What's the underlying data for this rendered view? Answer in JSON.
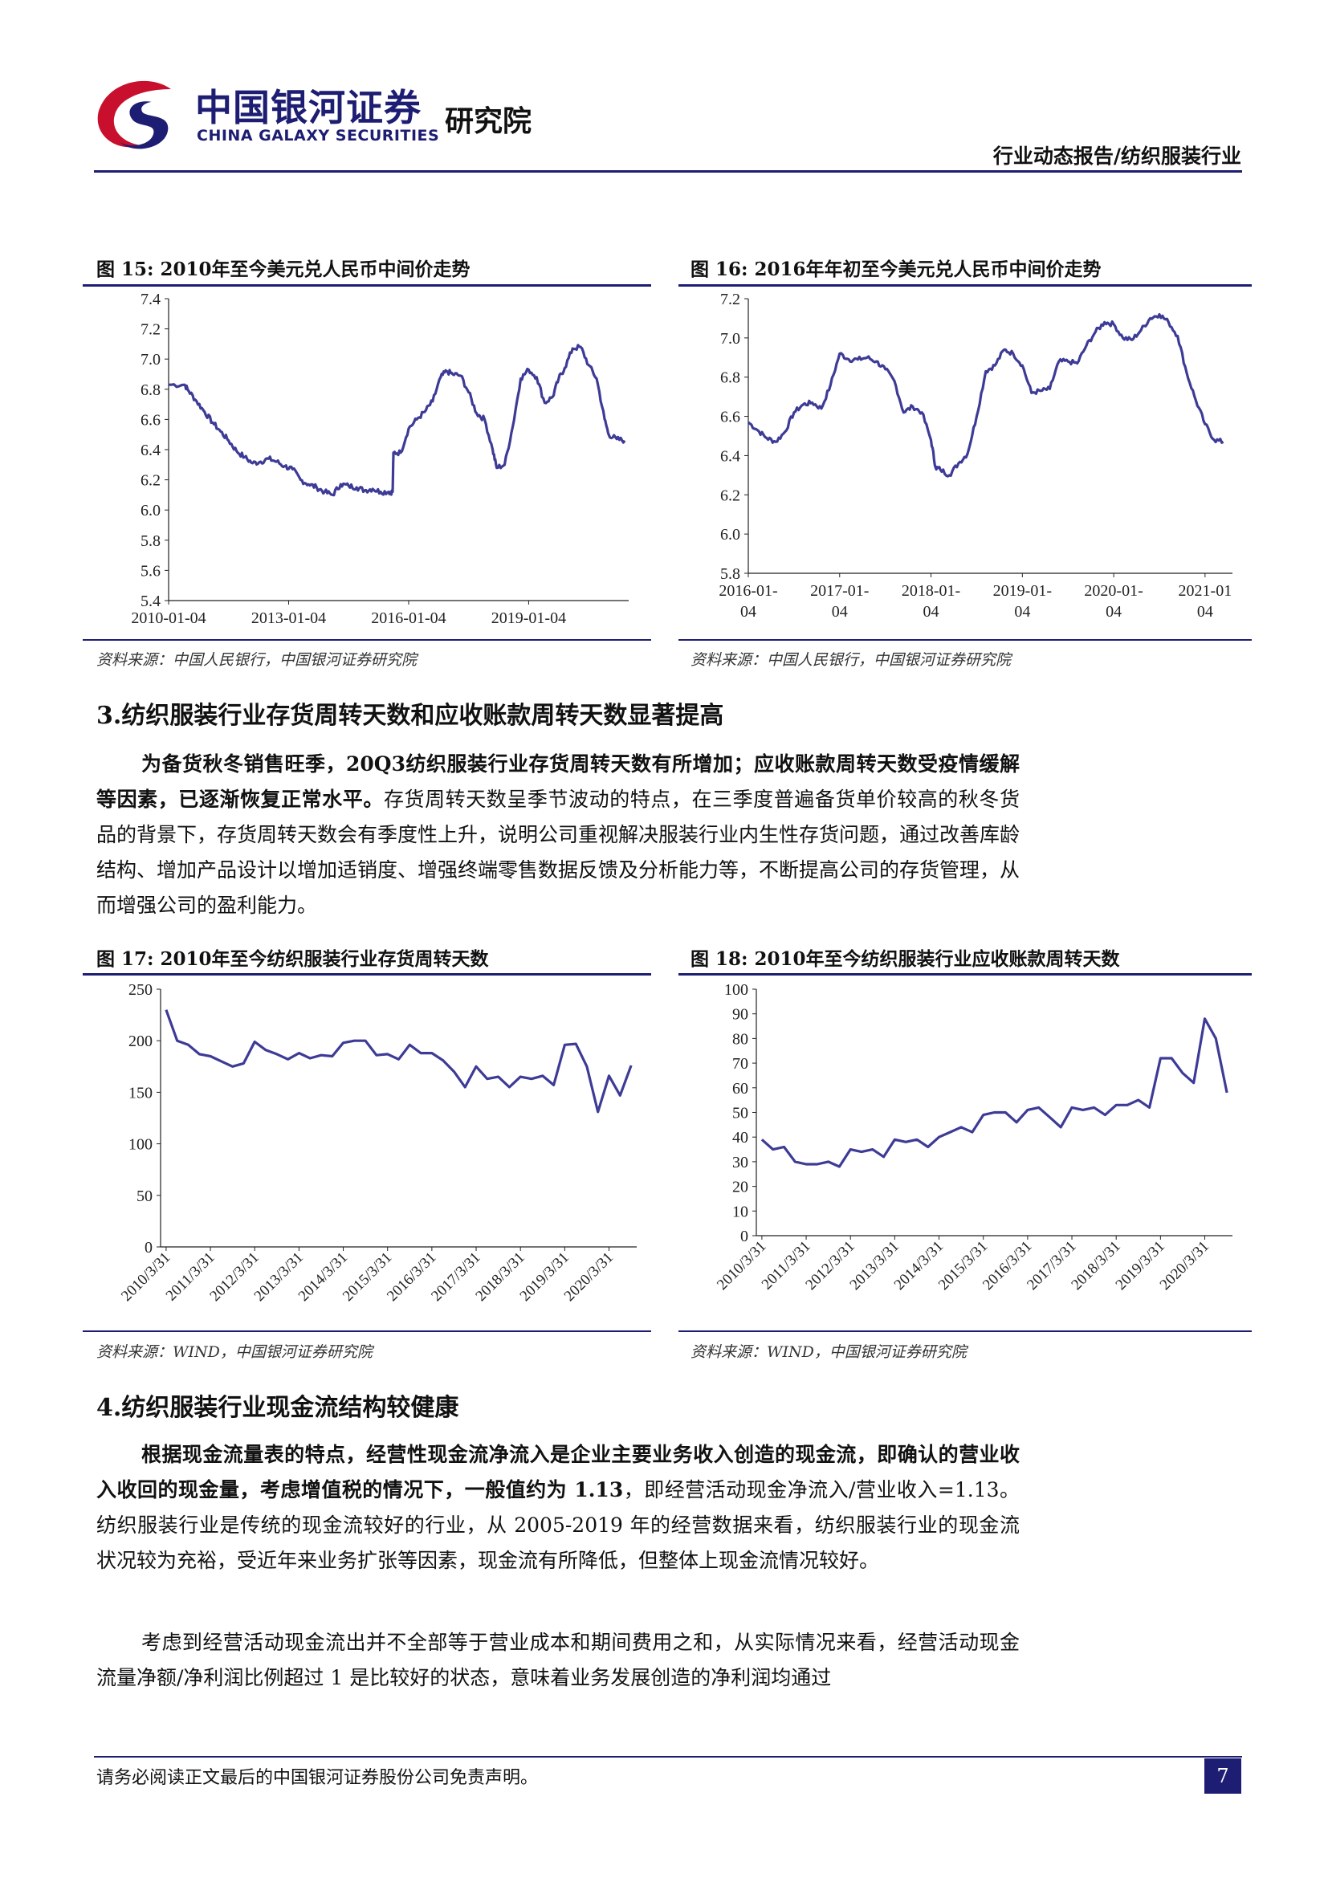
{
  "header": {
    "brand_cn": "中国银河证券",
    "brand_en": "CHINA GALAXY SECURITIES",
    "institute": "研究院",
    "report_type": "行业动态报告/纺织服装行业"
  },
  "colors": {
    "navy": "#1d1d73",
    "line": "#3d3b96",
    "logo_red": "#c8102e"
  },
  "fig15": {
    "title": "图 15: 2010年至今美元兑人民币中间价走势",
    "source": "资料来源：中国人民银行，中国银河证券研究院"
  },
  "fig16": {
    "title": "图 16: 2016年年初至今美元兑人民币中间价走势",
    "source": "资料来源：中国人民银行，中国银河证券研究院"
  },
  "fig17": {
    "title": "图 17: 2010年至今纺织服装行业存货周转天数",
    "source": "资料来源：WIND，中国银河证券研究院"
  },
  "fig18": {
    "title": "图 18: 2010年至今纺织服装行业应收账款周转天数",
    "source": "资料来源：WIND，中国银河证券研究院"
  },
  "section3": {
    "heading": "3.纺织服装行业存货周转天数和应收账款周转天数显著提高",
    "para_bold": "为备货秋冬销售旺季，20Q3纺织服装行业存货周转天数有所增加；应收账款周转天数受疫情缓解等因素，已逐渐恢复正常水平。",
    "para_rest": "存货周转天数呈季节波动的特点，在三季度普遍备货单价较高的秋冬货品的背景下，存货周转天数会有季度性上升，说明公司重视解决服装行业内生性存货问题，通过改善库龄结构、增加产品设计以增加适销度、增强终端零售数据反馈及分析能力等，不断提高公司的存货管理，从而增强公司的盈利能力。"
  },
  "section4": {
    "heading": "4.纺织服装行业现金流结构较健康",
    "para1_bold": "根据现金流量表的特点，经营性现金流净流入是企业主要业务收入创造的现金流，即确认的营业收入收回的现金量，考虑增值税的情况下，一般值约为 1.13",
    "para1_rest": "，即经营活动现金净流入/营业收入=1.13。纺织服装行业是传统的现金流较好的行业，从 2005-2019 年的经营数据来看，纺织服装行业的现金流状况较为充裕，受近年来业务扩张等因素，现金流有所降低，但整体上现金流情况较好。",
    "para2": "考虑到经营活动现金流出并不全部等于营业成本和期间费用之和，从实际情况来看，经营活动现金流量净额/净利润比例超过 1 是比较好的状态，意味着业务发展创造的净利润均通过"
  },
  "footer": {
    "disclaimer": "请务必阅读正文最后的中国银河证券股份公司免责声明。",
    "page_number": "7"
  },
  "chart_data": [
    {
      "id": "fig15",
      "type": "line",
      "title": "2010年至今美元兑人民币中间价走势",
      "x_tick_labels": [
        "2010-01-04",
        "2013-01-04",
        "2016-01-04",
        "2019-01-04"
      ],
      "x_range": [
        2010.0,
        2021.5
      ],
      "ylim": [
        5.4,
        7.4
      ],
      "y_ticks": [
        5.4,
        5.6,
        5.8,
        6.0,
        6.2,
        6.4,
        6.6,
        6.8,
        7.0,
        7.2,
        7.4
      ],
      "x": [
        2010.0,
        2010.4,
        2010.5,
        2010.7,
        2010.9,
        2011.1,
        2011.3,
        2011.5,
        2011.7,
        2011.9,
        2012.1,
        2012.3,
        2012.5,
        2012.7,
        2012.9,
        2013.1,
        2013.3,
        2013.5,
        2013.7,
        2013.9,
        2014.1,
        2014.3,
        2014.5,
        2014.7,
        2014.9,
        2015.1,
        2015.3,
        2015.5,
        2015.6,
        2015.62,
        2015.8,
        2016.0,
        2016.2,
        2016.4,
        2016.6,
        2016.8,
        2016.95,
        2017.1,
        2017.3,
        2017.5,
        2017.7,
        2017.9,
        2018.1,
        2018.2,
        2018.4,
        2018.6,
        2018.8,
        2019.0,
        2019.2,
        2019.4,
        2019.6,
        2019.75,
        2019.9,
        2020.1,
        2020.3,
        2020.5,
        2020.7,
        2020.9,
        2021.0,
        2021.2,
        2021.4
      ],
      "y": [
        6.83,
        6.83,
        6.79,
        6.72,
        6.65,
        6.58,
        6.52,
        6.46,
        6.39,
        6.35,
        6.31,
        6.32,
        6.34,
        6.32,
        6.29,
        6.27,
        6.2,
        6.17,
        6.15,
        6.12,
        6.1,
        6.17,
        6.16,
        6.15,
        6.13,
        6.14,
        6.12,
        6.12,
        6.12,
        6.38,
        6.38,
        6.54,
        6.6,
        6.65,
        6.72,
        6.88,
        6.92,
        6.9,
        6.89,
        6.78,
        6.64,
        6.6,
        6.4,
        6.28,
        6.3,
        6.55,
        6.87,
        6.93,
        6.88,
        6.71,
        6.75,
        6.87,
        6.94,
        7.07,
        7.08,
        6.96,
        6.87,
        6.6,
        6.5,
        6.47,
        6.46
      ],
      "xlabel": "",
      "ylabel": ""
    },
    {
      "id": "fig16",
      "type": "line",
      "title": "2016年年初至今美元兑人民币中间价走势",
      "x_tick_labels": [
        "2016-01-\n04",
        "2017-01-\n04",
        "2018-01-\n04",
        "2019-01-\n04",
        "2020-01-\n04",
        "2021-01\n04"
      ],
      "x_range": [
        2016.0,
        2021.3
      ],
      "ylim": [
        5.8,
        7.2
      ],
      "y_ticks": [
        5.8,
        6.0,
        6.2,
        6.4,
        6.6,
        6.8,
        7.0,
        7.2
      ],
      "x": [
        2016.0,
        2016.1,
        2016.2,
        2016.3,
        2016.4,
        2016.5,
        2016.6,
        2016.7,
        2016.8,
        2016.9,
        2017.0,
        2017.1,
        2017.2,
        2017.3,
        2017.4,
        2017.5,
        2017.6,
        2017.7,
        2017.8,
        2017.9,
        2018.0,
        2018.05,
        2018.1,
        2018.2,
        2018.3,
        2018.4,
        2018.5,
        2018.6,
        2018.7,
        2018.8,
        2018.9,
        2019.0,
        2019.1,
        2019.2,
        2019.3,
        2019.4,
        2019.5,
        2019.6,
        2019.7,
        2019.8,
        2019.9,
        2020.0,
        2020.1,
        2020.2,
        2020.3,
        2020.4,
        2020.5,
        2020.6,
        2020.7,
        2020.8,
        2020.9,
        2021.0,
        2021.1,
        2021.2
      ],
      "y": [
        6.57,
        6.53,
        6.49,
        6.47,
        6.52,
        6.62,
        6.66,
        6.67,
        6.64,
        6.76,
        6.92,
        6.89,
        6.89,
        6.9,
        6.88,
        6.84,
        6.78,
        6.62,
        6.65,
        6.62,
        6.48,
        6.34,
        6.33,
        6.3,
        6.36,
        6.41,
        6.6,
        6.83,
        6.86,
        6.94,
        6.92,
        6.86,
        6.72,
        6.73,
        6.74,
        6.88,
        6.88,
        6.87,
        6.96,
        7.03,
        7.08,
        7.07,
        7.0,
        6.99,
        7.04,
        7.1,
        7.12,
        7.08,
        7.01,
        6.82,
        6.68,
        6.56,
        6.48,
        6.47
      ],
      "xlabel": "",
      "ylabel": ""
    },
    {
      "id": "fig17",
      "type": "line",
      "title": "2010年至今纺织服装行业存货周转天数",
      "categories": [
        "2010/3/31",
        "2010/6/30",
        "2010/9/30",
        "2010/12/31",
        "2011/3/31",
        "2011/6/30",
        "2011/9/30",
        "2011/12/31",
        "2012/3/31",
        "2012/6/30",
        "2012/9/30",
        "2012/12/31",
        "2013/3/31",
        "2013/6/30",
        "2013/9/30",
        "2013/12/31",
        "2014/3/31",
        "2014/6/30",
        "2014/9/30",
        "2014/12/31",
        "2015/3/31",
        "2015/6/30",
        "2015/9/30",
        "2015/12/31",
        "2016/3/31",
        "2016/6/30",
        "2016/9/30",
        "2016/12/31",
        "2017/3/31",
        "2017/6/30",
        "2017/9/30",
        "2017/12/31",
        "2018/3/31",
        "2018/6/30",
        "2018/9/30",
        "2018/12/31",
        "2019/3/31",
        "2019/6/30",
        "2019/9/30",
        "2019/12/31",
        "2020/3/31",
        "2020/6/30",
        "2020/9/30"
      ],
      "tick_labels": [
        "2010/3/31",
        "2011/3/31",
        "2012/3/31",
        "2013/3/31",
        "2014/3/31",
        "2015/3/31",
        "2016/3/31",
        "2017/3/31",
        "2018/3/31",
        "2019/3/31",
        "2020/3/31"
      ],
      "values": [
        230,
        200,
        196,
        187,
        185,
        180,
        175,
        178,
        199,
        191,
        187,
        182,
        188,
        183,
        186,
        185,
        198,
        200,
        200,
        186,
        187,
        182,
        196,
        188,
        188,
        181,
        170,
        155,
        175,
        163,
        165,
        155,
        165,
        163,
        166,
        157,
        196,
        197,
        175,
        131,
        166,
        147,
        176
      ],
      "ylim": [
        0,
        250
      ],
      "y_ticks": [
        0,
        50,
        100,
        150,
        200,
        250
      ],
      "xlabel": "",
      "ylabel": ""
    },
    {
      "id": "fig18",
      "type": "line",
      "title": "2010年至今纺织服装行业应收账款周转天数",
      "categories": [
        "2010/3/31",
        "2010/6/30",
        "2010/9/30",
        "2010/12/31",
        "2011/3/31",
        "2011/6/30",
        "2011/9/30",
        "2011/12/31",
        "2012/3/31",
        "2012/6/30",
        "2012/9/30",
        "2012/12/31",
        "2013/3/31",
        "2013/6/30",
        "2013/9/30",
        "2013/12/31",
        "2014/3/31",
        "2014/6/30",
        "2014/9/30",
        "2014/12/31",
        "2015/3/31",
        "2015/6/30",
        "2015/9/30",
        "2015/12/31",
        "2016/3/31",
        "2016/6/30",
        "2016/9/30",
        "2016/12/31",
        "2017/3/31",
        "2017/6/30",
        "2017/9/30",
        "2017/12/31",
        "2018/3/31",
        "2018/6/30",
        "2018/9/30",
        "2018/12/31",
        "2019/3/31",
        "2019/6/30",
        "2019/9/30",
        "2019/12/31",
        "2020/3/31",
        "2020/6/30",
        "2020/9/30"
      ],
      "tick_labels": [
        "2010/3/31",
        "2011/3/31",
        "2012/3/31",
        "2013/3/31",
        "2014/3/31",
        "2015/3/31",
        "2016/3/31",
        "2017/3/31",
        "2018/3/31",
        "2019/3/31",
        "2020/3/31"
      ],
      "values": [
        39,
        35,
        36,
        30,
        29,
        29,
        30,
        28,
        35,
        34,
        35,
        32,
        39,
        38,
        39,
        36,
        40,
        42,
        44,
        42,
        49,
        50,
        50,
        46,
        51,
        52,
        48,
        44,
        52,
        51,
        52,
        49,
        53,
        53,
        55,
        52,
        72,
        72,
        66,
        62,
        88,
        80,
        58
      ],
      "ylim": [
        0,
        100
      ],
      "y_ticks": [
        0,
        10,
        20,
        30,
        40,
        50,
        60,
        70,
        80,
        90,
        100
      ],
      "xlabel": "",
      "ylabel": ""
    }
  ]
}
